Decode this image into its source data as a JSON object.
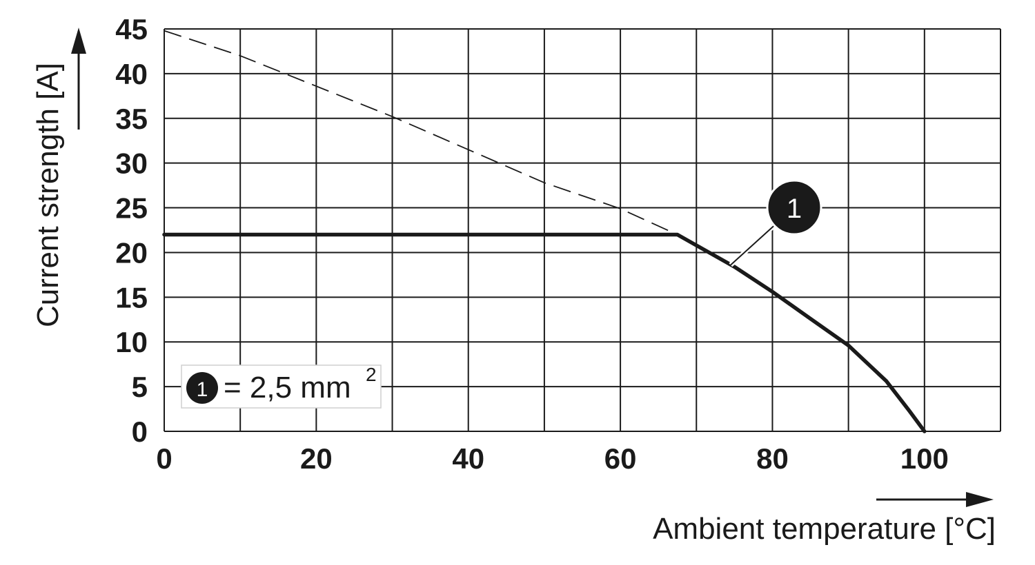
{
  "chart_data": {
    "type": "line",
    "xlabel": "Ambient temperature [°C]",
    "ylabel": "Current strength [A]",
    "xlim": [
      0,
      110
    ],
    "ylim": [
      0,
      45
    ],
    "x_ticks": [
      0,
      20,
      40,
      60,
      80,
      100
    ],
    "y_ticks": [
      0,
      5,
      10,
      15,
      20,
      25,
      30,
      35,
      40,
      45
    ],
    "x_grid_step": 10,
    "y_grid_step": 5,
    "grid": true,
    "series": [
      {
        "name": "1",
        "style": "solid",
        "points": [
          [
            0,
            22
          ],
          [
            67.5,
            22
          ],
          [
            70,
            20.8
          ],
          [
            75,
            18.4
          ],
          [
            80,
            15.6
          ],
          [
            85,
            12.6
          ],
          [
            90,
            9.6
          ],
          [
            95,
            5.6
          ],
          [
            98,
            2.3
          ],
          [
            100,
            0
          ]
        ]
      },
      {
        "style": "dashed",
        "points": [
          [
            0,
            44.8
          ],
          [
            10,
            42
          ],
          [
            20,
            38.6
          ],
          [
            30,
            35.2
          ],
          [
            40,
            31.5
          ],
          [
            50,
            27.8
          ],
          [
            60,
            24.9
          ],
          [
            67.5,
            22
          ]
        ]
      }
    ],
    "marker": {
      "label": "1",
      "points_to": [
        74.5,
        18.6
      ]
    },
    "legend": {
      "marker": "1",
      "text": "= 2,5 mm",
      "superscript": "2",
      "placement": "bottom-left"
    }
  }
}
